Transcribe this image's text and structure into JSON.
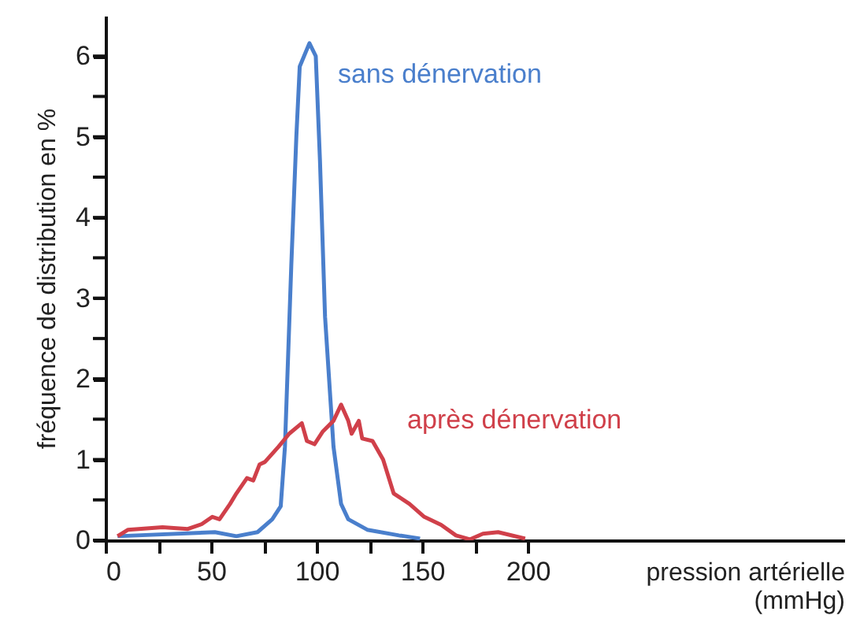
{
  "chart_data": {
    "type": "line",
    "xlabel": "pression artérielle (mmHg)",
    "ylabel": "fréquence de distribution en %",
    "xlim": [
      0,
      350
    ],
    "ylim": [
      0,
      6.5
    ],
    "xticks": [
      0,
      {
        "value": 25,
        "label": null
      },
      50,
      {
        "value": 75,
        "label": null
      },
      100,
      {
        "value": 125,
        "label": null
      },
      150,
      {
        "value": 175,
        "label": null
      },
      200
    ],
    "yticks": [
      0,
      {
        "value": 0.5,
        "label": null
      },
      1,
      {
        "value": 1.5,
        "label": null
      },
      2,
      {
        "value": 2.5,
        "label": null
      },
      3,
      {
        "value": 3.5,
        "label": null
      },
      4,
      {
        "value": 4.5,
        "label": null
      },
      5,
      {
        "value": 5.5,
        "label": null
      },
      6
    ],
    "grid": false,
    "marker": "none",
    "line_style": "solid",
    "series": [
      {
        "name": "sans dénervation",
        "color": "#4a7fcc",
        "x": [
          5.7,
          51.8,
          62,
          72,
          79,
          83,
          85,
          88,
          90.4,
          92,
          96.6,
          99.6,
          101.6,
          104,
          108,
          111.6,
          115,
          124,
          139,
          149
        ],
        "values": [
          0.05,
          0.1,
          0.05,
          0.1,
          0.26,
          0.42,
          1.16,
          3.4,
          5.0,
          5.87,
          6.16,
          6.0,
          4.7,
          2.77,
          1.16,
          0.45,
          0.26,
          0.13,
          0.06,
          0.02
        ]
      },
      {
        "name": "après dénervation",
        "color": "#d0404a",
        "x": [
          5.7,
          10.7,
          27,
          39,
          45.6,
          50.6,
          54,
          59,
          62,
          67,
          70,
          73,
          75.5,
          82,
          87,
          93,
          95.4,
          99,
          103,
          108,
          111.6,
          115,
          116.6,
          120,
          121.6,
          126.5,
          131.5,
          136.5,
          144,
          151,
          159,
          166,
          172.6,
          178.8,
          186,
          198.8
        ],
        "values": [
          0.05,
          0.13,
          0.16,
          0.14,
          0.2,
          0.29,
          0.26,
          0.45,
          0.58,
          0.77,
          0.74,
          0.94,
          0.97,
          1.16,
          1.32,
          1.45,
          1.23,
          1.19,
          1.35,
          1.48,
          1.68,
          1.48,
          1.32,
          1.48,
          1.26,
          1.23,
          1.0,
          0.58,
          0.45,
          0.29,
          0.19,
          0.06,
          0.01,
          0.08,
          0.1,
          0.02
        ]
      }
    ]
  }
}
